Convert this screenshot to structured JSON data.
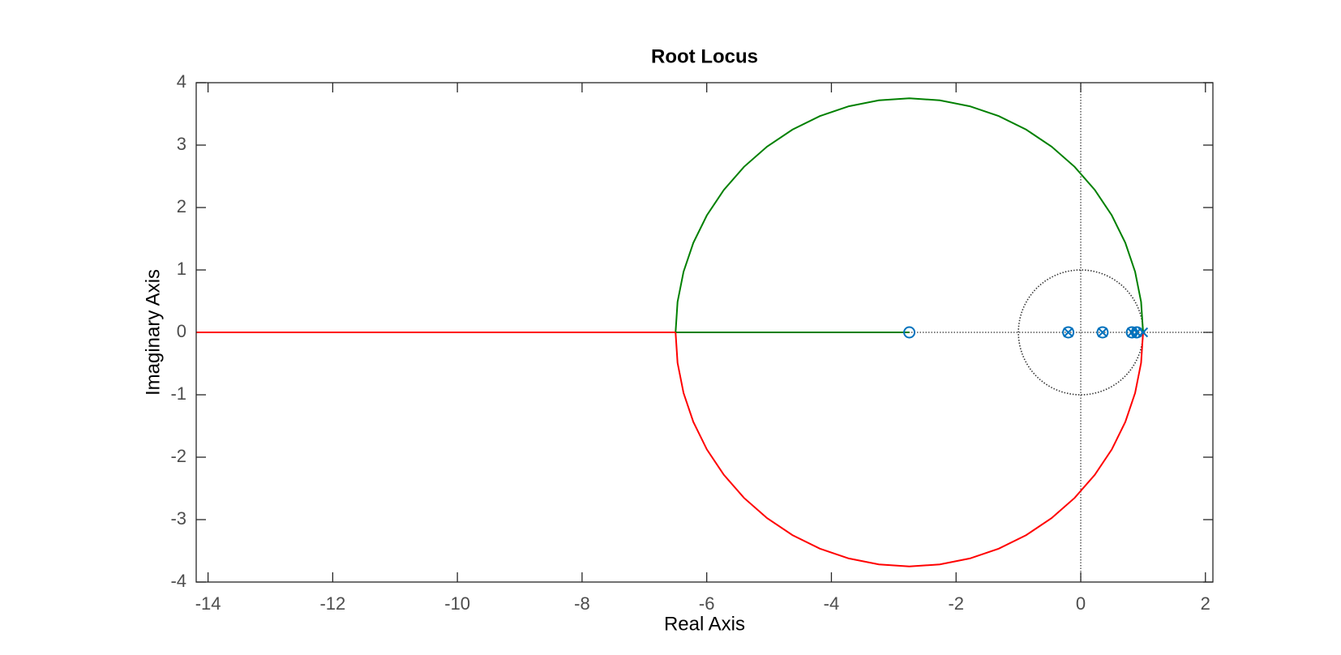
{
  "chart_data": {
    "type": "root_locus",
    "title": "Root Locus",
    "x_label": "Real Axis",
    "y_label": "Imaginary Axis",
    "xlim": [
      -14.19,
      2.12
    ],
    "ylim": [
      -4,
      4
    ],
    "xticks": [
      -14,
      -12,
      -10,
      -8,
      -6,
      -4,
      -2,
      0,
      2
    ],
    "yticks": [
      -4,
      -3,
      -2,
      -1,
      0,
      1,
      2,
      3,
      4
    ],
    "series": [
      {
        "color": "#008000",
        "x": [
          -6.5,
          -6.468,
          -6.372,
          -6.215,
          -5.998,
          -5.725,
          -5.402,
          -5.033,
          -4.625,
          -4.185,
          -3.721,
          -3.239,
          -2.75,
          -2.261,
          -1.779,
          -1.315,
          -0.875,
          -0.467,
          -0.098,
          0.225,
          0.498,
          0.715,
          0.872,
          0.968,
          1
        ],
        "y": [
          0,
          0.489,
          0.971,
          1.435,
          1.875,
          2.283,
          2.652,
          2.975,
          3.248,
          3.465,
          3.622,
          3.718,
          3.75,
          3.718,
          3.622,
          3.465,
          3.248,
          2.975,
          2.652,
          2.283,
          1.875,
          1.435,
          0.971,
          0.489,
          0
        ]
      },
      {
        "color": "#008000",
        "x": [
          -6.5,
          -2.75
        ],
        "y": [
          0,
          0
        ]
      },
      {
        "color": "#ff0000",
        "x": [
          -14.19,
          -6.5
        ],
        "y": [
          0,
          0
        ]
      },
      {
        "color": "#ff0000",
        "x": [
          -6.5,
          -6.468,
          -6.372,
          -6.215,
          -5.998,
          -5.725,
          -5.402,
          -5.033,
          -4.625,
          -4.185,
          -3.721,
          -3.239,
          -2.75,
          -2.261,
          -1.779,
          -1.315,
          -0.875,
          -0.467,
          -0.098,
          0.225,
          0.498,
          0.715,
          0.872,
          0.968,
          1
        ],
        "y": [
          0,
          -0.489,
          -0.971,
          -1.435,
          -1.875,
          -2.283,
          -2.652,
          -2.975,
          -3.248,
          -3.465,
          -3.622,
          -3.718,
          -3.75,
          -3.718,
          -3.622,
          -3.465,
          -3.248,
          -2.975,
          -2.652,
          -2.283,
          -1.875,
          -1.435,
          -0.971,
          -0.489,
          0
        ]
      }
    ],
    "poles": {
      "color": "#0072bd",
      "x": [
        -0.2,
        0.35,
        0.82,
        0.9,
        1.0
      ],
      "y": [
        0,
        0,
        0,
        0,
        0
      ]
    },
    "zeros": {
      "color": "#0072bd",
      "x": [
        -2.75,
        -0.2,
        0.35,
        0.82,
        0.9
      ],
      "y": [
        0,
        0,
        0,
        0,
        0
      ]
    },
    "unit_circle": {
      "radius": 1,
      "color": "#333333"
    }
  }
}
